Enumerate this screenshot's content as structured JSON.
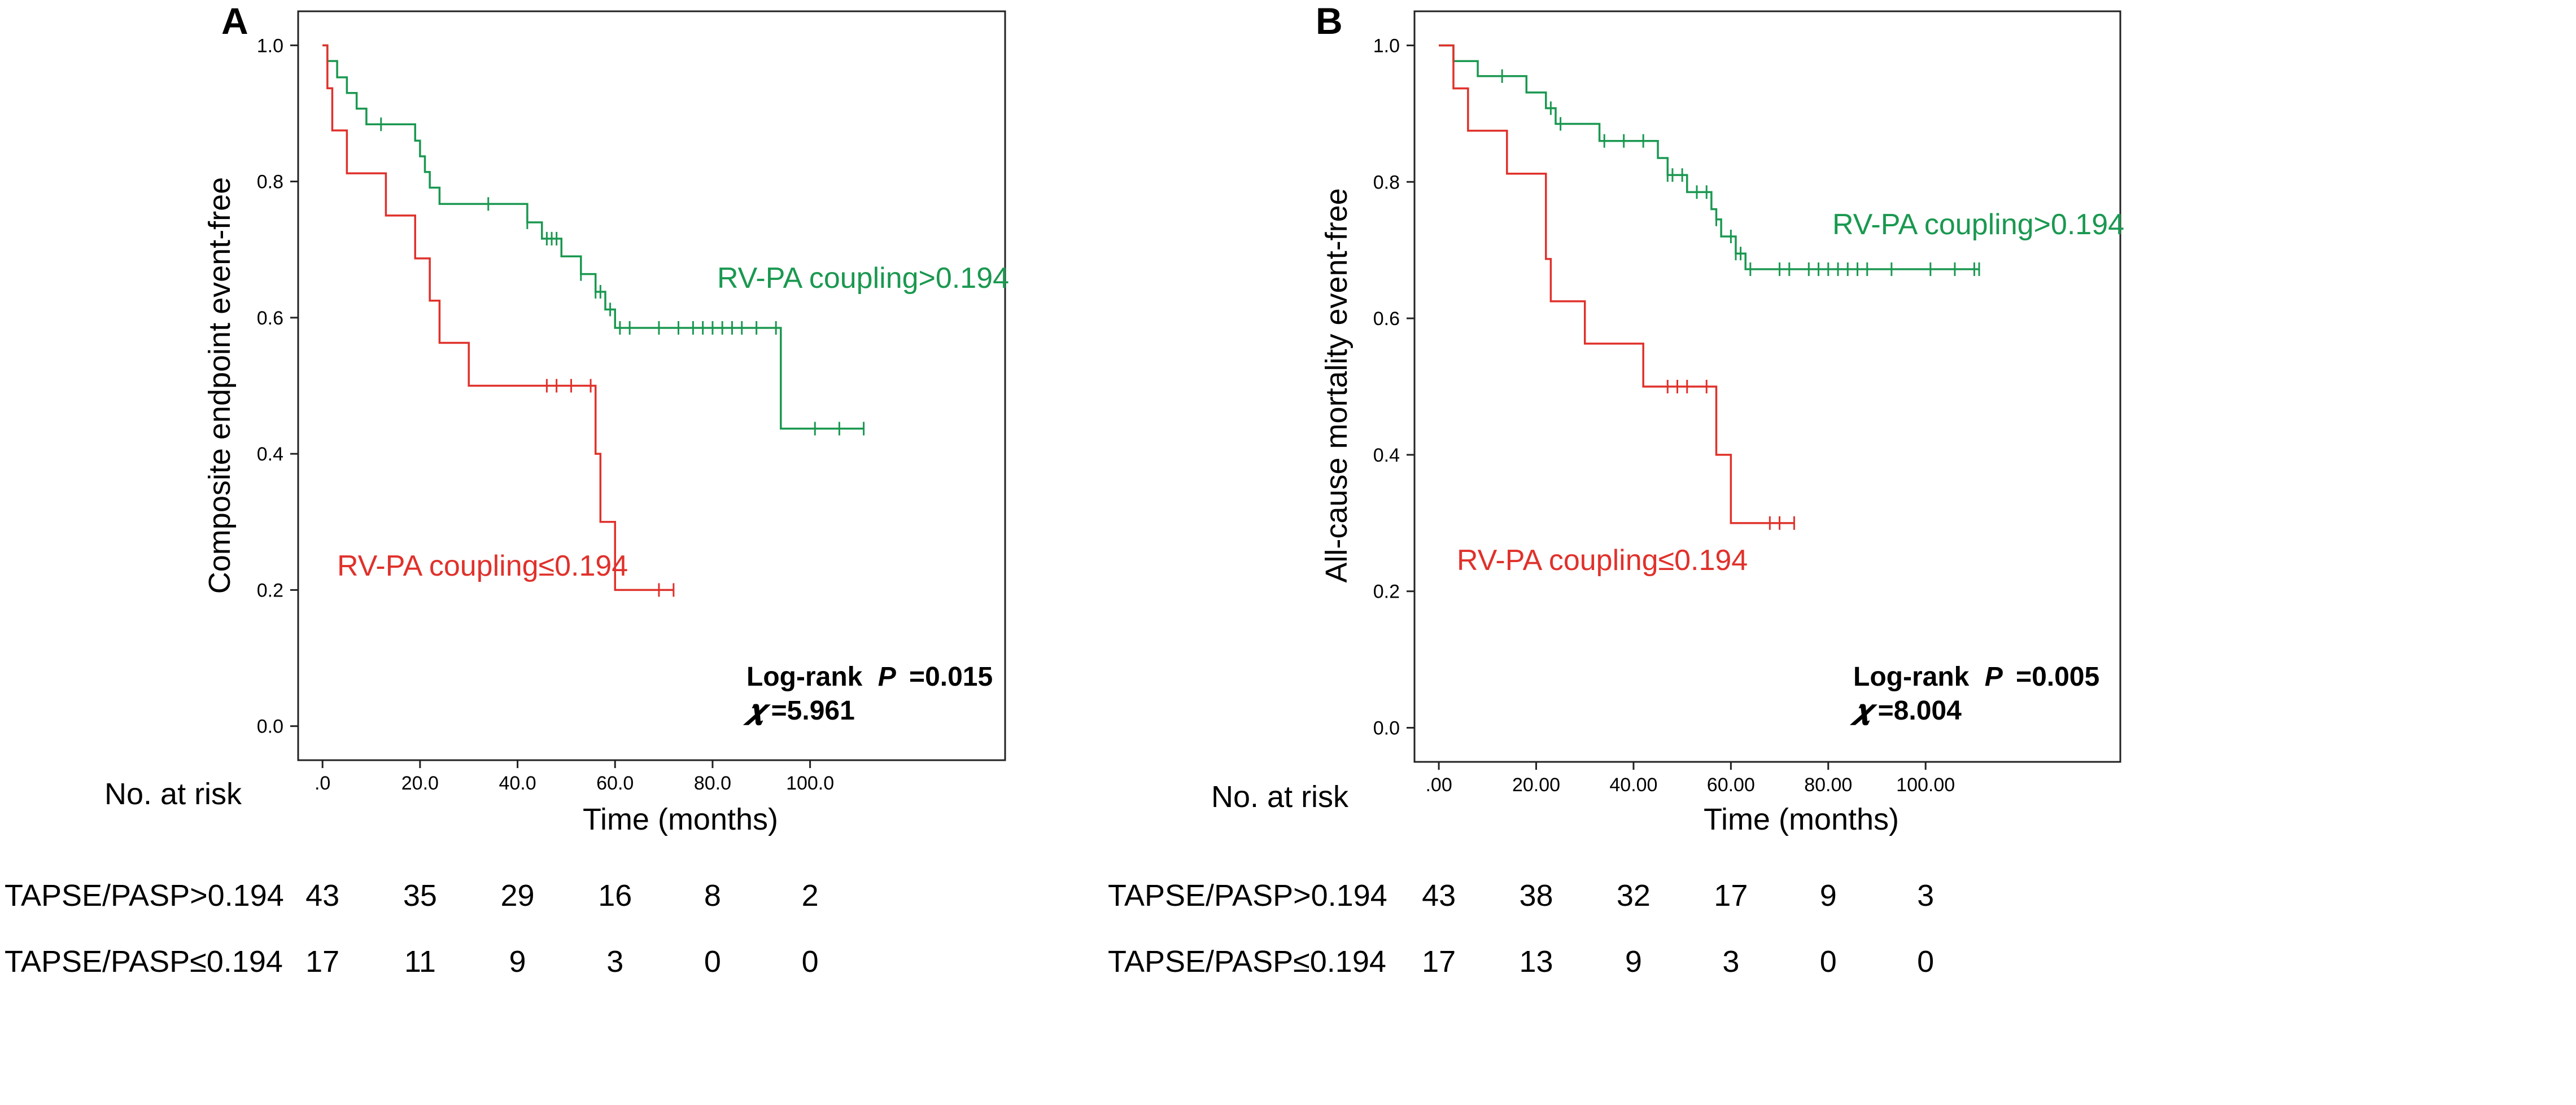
{
  "chart_data": [
    {
      "type": "line",
      "panel": "A",
      "ylabel": "Composite endpoint event-free",
      "xlabel": "Time (months)",
      "xlim": [
        -5,
        140
      ],
      "ylim": [
        -0.05,
        1.05
      ],
      "xticks": [
        ".0",
        "20.0",
        "40.0",
        "60.0",
        "80.0",
        "100.0"
      ],
      "xtick_values": [
        0,
        20,
        40,
        60,
        80,
        100
      ],
      "yticks": [
        "0.0",
        "0.2",
        "0.4",
        "0.6",
        "0.8",
        "1.0"
      ],
      "ytick_values": [
        0,
        0.2,
        0.4,
        0.6,
        0.8,
        1.0
      ],
      "series": [
        {
          "name": "RV-PA coupling>0.194",
          "color": "#1a9850",
          "steps": [
            [
              0,
              1.0
            ],
            [
              1,
              0.977
            ],
            [
              3,
              0.953
            ],
            [
              5,
              0.93
            ],
            [
              7,
              0.907
            ],
            [
              9,
              0.884
            ],
            [
              19,
              0.86
            ],
            [
              20,
              0.837
            ],
            [
              21,
              0.814
            ],
            [
              22,
              0.791
            ],
            [
              24,
              0.767
            ],
            [
              42,
              0.74
            ],
            [
              45,
              0.716
            ],
            [
              49,
              0.69
            ],
            [
              53,
              0.664
            ],
            [
              56,
              0.638
            ],
            [
              58,
              0.612
            ],
            [
              60,
              0.585
            ],
            [
              94,
              0.437
            ]
          ],
          "end_x": 111,
          "censored_x": [
            12,
            34,
            42,
            46,
            47,
            48,
            53,
            56,
            57,
            59,
            61,
            63,
            69,
            73,
            76,
            78,
            80,
            82,
            84,
            86,
            89,
            93,
            101,
            106,
            111
          ]
        },
        {
          "name": "RV-PA coupling≤0.194",
          "color": "#e0312b",
          "steps": [
            [
              0,
              1.0
            ],
            [
              1,
              0.937
            ],
            [
              2,
              0.875
            ],
            [
              5,
              0.812
            ],
            [
              13,
              0.75
            ],
            [
              19,
              0.687
            ],
            [
              22,
              0.625
            ],
            [
              24,
              0.563
            ],
            [
              30,
              0.5
            ],
            [
              56,
              0.4
            ],
            [
              57,
              0.3
            ],
            [
              60,
              0.2
            ]
          ],
          "end_x": 72,
          "censored_x": [
            46,
            48,
            51,
            55,
            69,
            72
          ]
        }
      ],
      "annotation_log_rank": "Log-rank",
      "annotation_p_symbol": "P",
      "annotation_p_value": "=0.015",
      "annotation_chi_symbol": "𝝌",
      "annotation_chi_value": "=5.961"
    },
    {
      "type": "line",
      "panel": "B",
      "ylabel": "All-cause mortality event-free",
      "xlabel": "Time (months)",
      "xlim": [
        -5,
        140
      ],
      "ylim": [
        -0.05,
        1.05
      ],
      "xticks": [
        ".00",
        "20.00",
        "40.00",
        "60.00",
        "80.00",
        "100.00"
      ],
      "xtick_values": [
        0,
        20,
        40,
        60,
        80,
        100
      ],
      "yticks": [
        "0.0",
        "0.2",
        "0.4",
        "0.6",
        "0.8",
        "1.0"
      ],
      "ytick_values": [
        0,
        0.2,
        0.4,
        0.6,
        0.8,
        1.0
      ],
      "series": [
        {
          "name": "RV-PA coupling>0.194",
          "color": "#1a9850",
          "steps": [
            [
              0,
              1.0
            ],
            [
              3,
              0.977
            ],
            [
              8,
              0.955
            ],
            [
              18,
              0.931
            ],
            [
              22,
              0.908
            ],
            [
              24,
              0.885
            ],
            [
              33,
              0.86
            ],
            [
              45,
              0.835
            ],
            [
              47,
              0.81
            ],
            [
              51,
              0.785
            ],
            [
              56,
              0.76
            ],
            [
              57,
              0.745
            ],
            [
              58,
              0.72
            ],
            [
              61,
              0.695
            ],
            [
              63,
              0.672
            ]
          ],
          "end_x": 111,
          "censored_x": [
            13,
            23,
            25,
            34,
            38,
            42,
            47,
            48,
            50,
            53,
            55,
            57,
            60,
            61,
            62,
            64,
            70,
            72,
            76,
            78,
            80,
            82,
            84,
            86,
            88,
            93,
            101,
            106,
            110,
            111
          ]
        },
        {
          "name": "RV-PA coupling≤0.194",
          "color": "#e0312b",
          "steps": [
            [
              0,
              1.0
            ],
            [
              3,
              0.937
            ],
            [
              6,
              0.875
            ],
            [
              14,
              0.812
            ],
            [
              22,
              0.687
            ],
            [
              23,
              0.625
            ],
            [
              30,
              0.563
            ],
            [
              42,
              0.5
            ],
            [
              57,
              0.4
            ],
            [
              60,
              0.3
            ]
          ],
          "end_x": 73,
          "censored_x": [
            47,
            49,
            51,
            55,
            68,
            70,
            73
          ]
        }
      ],
      "annotation_log_rank": "Log-rank",
      "annotation_p_symbol": "P",
      "annotation_p_value": "=0.005",
      "annotation_chi_symbol": "𝝌",
      "annotation_chi_value": "=8.004"
    }
  ],
  "risk_tables": [
    {
      "title": "No. at risk",
      "rows": [
        {
          "label": "TAPSE/PASP>0.194",
          "values": [
            "43",
            "35",
            "29",
            "16",
            "8",
            "2"
          ]
        },
        {
          "label": "TAPSE/PASP≤0.194",
          "values": [
            "17",
            "11",
            "9",
            "3",
            "0",
            "0"
          ]
        }
      ]
    },
    {
      "title": "No. at risk",
      "rows": [
        {
          "label": "TAPSE/PASP>0.194",
          "values": [
            "43",
            "38",
            "32",
            "17",
            "9",
            "3"
          ]
        },
        {
          "label": "TAPSE/PASP≤0.194",
          "values": [
            "17",
            "13",
            "9",
            "3",
            "0",
            "0"
          ]
        }
      ]
    }
  ]
}
